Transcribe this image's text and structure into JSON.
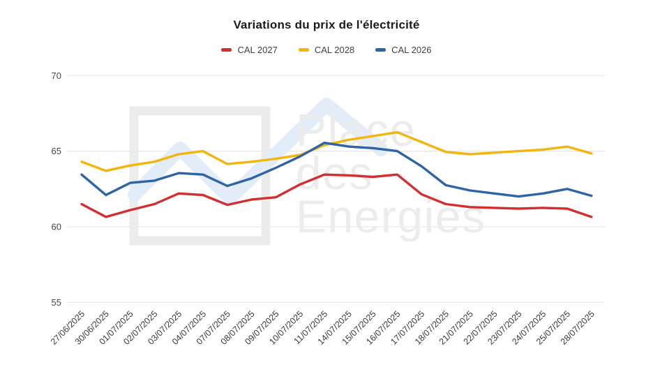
{
  "chart_data": {
    "type": "line",
    "title": "Variations du prix de l'électricité",
    "legend_position": "top",
    "grid": "horizontal",
    "y_ticks": [
      70,
      65,
      60,
      55
    ],
    "ylim": [
      55,
      70
    ],
    "x_tick_labels": [
      "27/06/2025",
      "30/06/2025",
      "01/07/2025",
      "02/07/2025",
      "03/07/2025",
      "04/07/2025",
      "07/07/2025",
      "08/07/2025",
      "09/07/2025",
      "10/07/2025",
      "11/07/2025",
      "14/07/2025",
      "15/07/2025",
      "16/07/2025",
      "17/07/2025",
      "18/07/2025",
      "21/07/2025",
      "22/07/2025",
      "23/07/2025",
      "24/07/2025",
      "25/07/2025",
      "28/07/2025"
    ],
    "series": [
      {
        "name": "CAL 2027",
        "color": "#d32f2e",
        "values": [
          61.5,
          60.65,
          61.1,
          61.5,
          62.2,
          62.1,
          61.45,
          61.8,
          61.95,
          62.8,
          63.45,
          63.4,
          63.3,
          63.45,
          62.15,
          61.5,
          61.3,
          61.25,
          61.2,
          61.25,
          61.2,
          60.65
        ]
      },
      {
        "name": "CAL 2028",
        "color": "#f3b50c",
        "values": [
          64.3,
          63.7,
          64.05,
          64.3,
          64.8,
          65.0,
          64.15,
          64.3,
          64.5,
          64.75,
          65.4,
          65.75,
          66.0,
          66.25,
          65.6,
          64.95,
          64.8,
          64.9,
          65.0,
          65.1,
          65.3,
          64.85
        ]
      },
      {
        "name": "CAL 2026",
        "color": "#2c64a5",
        "values": [
          63.45,
          62.1,
          62.9,
          63.05,
          63.55,
          63.45,
          62.7,
          63.2,
          63.9,
          64.65,
          65.55,
          65.3,
          65.2,
          65.0,
          64.0,
          62.75,
          62.4,
          62.2,
          62.0,
          62.2,
          62.5,
          62.05
        ]
      }
    ]
  },
  "watermark": {
    "lines": [
      "Place",
      "des",
      "Energies"
    ]
  },
  "colors": {
    "grid": "#e3e3e3",
    "axis_text": "#454545",
    "x_label_text": "#3a3a3a",
    "watermark_gray": "#ececec",
    "watermark_blue": "#e2edf9",
    "background": "#ffffff"
  }
}
